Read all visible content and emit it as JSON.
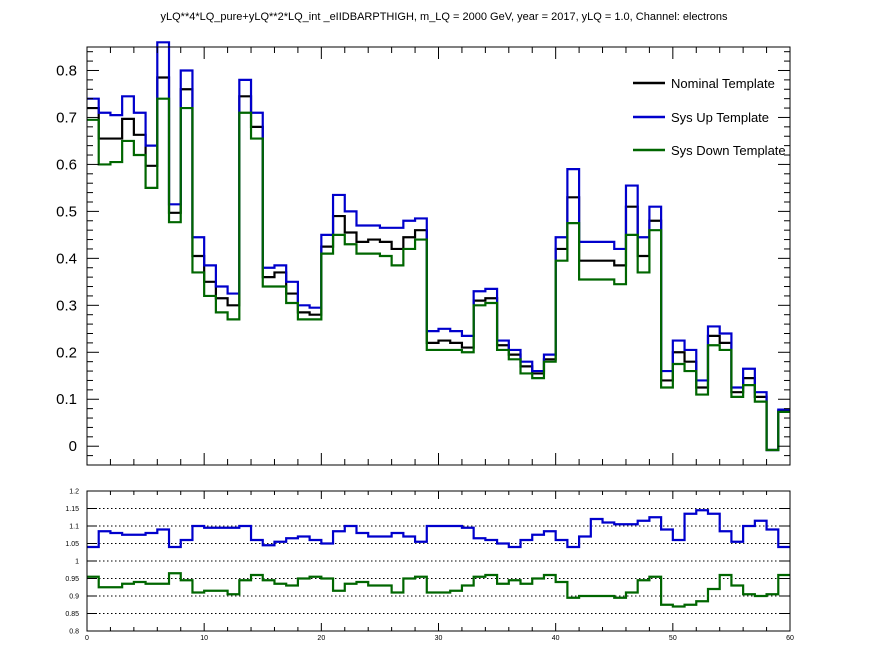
{
  "title": "yLQ**4*LQ_pure+yLQ**2*LQ_int _eIIDBARPTHIGH, m_LQ = 2000 GeV, year = 2017, yLQ = 1.0, Channel: electrons",
  "colors": {
    "nominal": "#000000",
    "up": "#0000cc",
    "down": "#006600",
    "frame": "#000000",
    "grid": "#000000"
  },
  "legend": {
    "nominal": "Nominal Template",
    "up": "Sys Up Template",
    "down": "Sys Down Template",
    "placement": "top-right"
  },
  "chart_data": [
    {
      "type": "line",
      "style": "step-histogram",
      "xlim": [
        0,
        60
      ],
      "ylim": [
        -0.04,
        0.85
      ],
      "y_ticks": [
        0,
        0.1,
        0.2,
        0.3,
        0.4,
        0.5,
        0.6,
        0.7,
        0.8
      ],
      "y_tick_labels": [
        "0",
        "0.1",
        "0.2",
        "0.3",
        "0.4",
        "0.5",
        "0.6",
        "0.7",
        "0.8"
      ],
      "grid": false,
      "series": [
        {
          "name": "Nominal Template",
          "color": "#000000",
          "values": [
            0.72,
            0.655,
            0.655,
            0.697,
            0.663,
            0.597,
            0.785,
            0.497,
            0.76,
            0.405,
            0.35,
            0.315,
            0.3,
            0.745,
            0.68,
            0.36,
            0.37,
            0.325,
            0.285,
            0.28,
            0.425,
            0.49,
            0.455,
            0.435,
            0.44,
            0.435,
            0.42,
            0.445,
            0.46,
            0.22,
            0.225,
            0.22,
            0.21,
            0.31,
            0.315,
            0.215,
            0.195,
            0.17,
            0.155,
            0.185,
            0.42,
            0.53,
            0.395,
            0.395,
            0.395,
            0.385,
            0.51,
            0.405,
            0.48,
            0.14,
            0.2,
            0.18,
            0.125,
            0.235,
            0.22,
            0.115,
            0.145,
            0.105,
            -0.008,
            0.075
          ]
        },
        {
          "name": "Sys Up Template",
          "color": "#0000cc",
          "values": [
            0.74,
            0.71,
            0.705,
            0.745,
            0.71,
            0.64,
            0.86,
            0.515,
            0.8,
            0.445,
            0.385,
            0.34,
            0.325,
            0.78,
            0.71,
            0.38,
            0.385,
            0.35,
            0.3,
            0.295,
            0.45,
            0.535,
            0.5,
            0.47,
            0.47,
            0.465,
            0.465,
            0.48,
            0.485,
            0.245,
            0.25,
            0.245,
            0.235,
            0.33,
            0.335,
            0.225,
            0.205,
            0.18,
            0.16,
            0.195,
            0.445,
            0.59,
            0.435,
            0.435,
            0.435,
            0.42,
            0.555,
            0.445,
            0.51,
            0.16,
            0.225,
            0.205,
            0.14,
            0.255,
            0.24,
            0.125,
            0.165,
            0.115,
            -0.008,
            0.078
          ]
        },
        {
          "name": "Sys Down Template",
          "color": "#006600",
          "values": [
            0.695,
            0.6,
            0.605,
            0.65,
            0.62,
            0.55,
            0.74,
            0.477,
            0.72,
            0.37,
            0.32,
            0.285,
            0.27,
            0.71,
            0.655,
            0.34,
            0.34,
            0.305,
            0.27,
            0.27,
            0.41,
            0.45,
            0.43,
            0.41,
            0.41,
            0.405,
            0.385,
            0.42,
            0.44,
            0.205,
            0.205,
            0.205,
            0.2,
            0.3,
            0.305,
            0.205,
            0.185,
            0.155,
            0.145,
            0.18,
            0.395,
            0.475,
            0.355,
            0.355,
            0.355,
            0.345,
            0.45,
            0.37,
            0.46,
            0.125,
            0.175,
            0.16,
            0.11,
            0.215,
            0.205,
            0.105,
            0.13,
            0.095,
            -0.008,
            0.073
          ]
        }
      ]
    },
    {
      "type": "line",
      "style": "step-histogram",
      "xlim": [
        0,
        60
      ],
      "ylim": [
        0.8,
        1.2
      ],
      "x_ticks": [
        0,
        10,
        20,
        30,
        40,
        50,
        60
      ],
      "x_tick_labels": [
        "0",
        "10",
        "20",
        "30",
        "40",
        "50",
        "60"
      ],
      "y_ticks": [
        0.8,
        0.85,
        0.9,
        0.95,
        1.0,
        1.05,
        1.1,
        1.15,
        1.2
      ],
      "y_tick_labels": [
        "0.8",
        "0.85",
        "0.9",
        "0.95",
        "1",
        "1.05",
        "1.1",
        "1.15",
        "1.2"
      ],
      "grid_y": [
        0.85,
        0.9,
        0.95,
        1.0,
        1.05,
        1.1,
        1.15
      ],
      "series": [
        {
          "name": "Sys Up Template",
          "color": "#0000cc",
          "values": [
            1.04,
            1.085,
            1.08,
            1.075,
            1.075,
            1.08,
            1.09,
            1.04,
            1.06,
            1.1,
            1.095,
            1.095,
            1.095,
            1.1,
            1.06,
            1.045,
            1.055,
            1.065,
            1.07,
            1.06,
            1.05,
            1.085,
            1.1,
            1.08,
            1.07,
            1.07,
            1.08,
            1.07,
            1.055,
            1.1,
            1.1,
            1.1,
            1.095,
            1.065,
            1.06,
            1.05,
            1.04,
            1.06,
            1.075,
            1.085,
            1.06,
            1.04,
            1.07,
            1.12,
            1.11,
            1.105,
            1.105,
            1.115,
            1.125,
            1.09,
            1.06,
            1.135,
            1.145,
            1.135,
            1.085,
            1.055,
            1.1,
            1.115,
            1.09,
            1.04
          ]
        },
        {
          "name": "Sys Down Template",
          "color": "#006600",
          "values": [
            0.955,
            0.925,
            0.925,
            0.935,
            0.94,
            0.935,
            0.935,
            0.965,
            0.945,
            0.91,
            0.915,
            0.915,
            0.905,
            0.945,
            0.96,
            0.945,
            0.935,
            0.93,
            0.95,
            0.955,
            0.95,
            0.915,
            0.935,
            0.94,
            0.93,
            0.93,
            0.91,
            0.95,
            0.955,
            0.91,
            0.91,
            0.915,
            0.93,
            0.955,
            0.96,
            0.935,
            0.945,
            0.935,
            0.95,
            0.96,
            0.94,
            0.895,
            0.9,
            0.9,
            0.9,
            0.895,
            0.91,
            0.945,
            0.955,
            0.875,
            0.87,
            0.875,
            0.885,
            0.92,
            0.96,
            0.93,
            0.905,
            0.9,
            0.905,
            0.96
          ]
        }
      ]
    }
  ]
}
